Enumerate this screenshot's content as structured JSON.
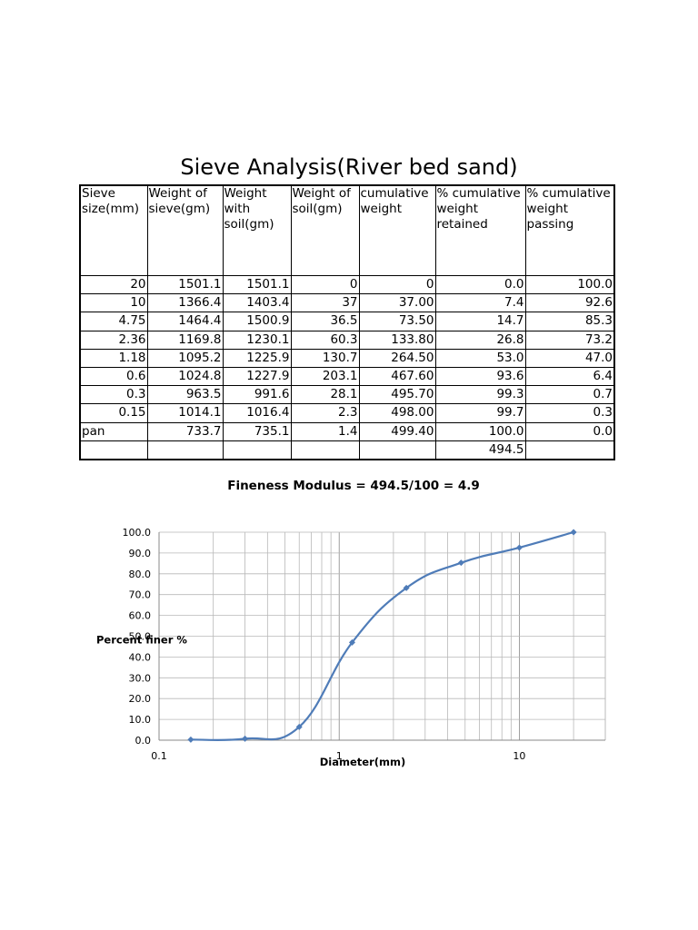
{
  "title": "Sieve Analysis(River bed sand)",
  "table": {
    "headers": [
      "Sieve size(mm)",
      "Weight of sieve(gm)",
      "Weight with soil(gm)",
      "Weight of soil(gm)",
      "cumulative weight",
      "% cumulative weight retained",
      "% cumulative weight passing"
    ],
    "rows": [
      [
        "20",
        "1501.1",
        "1501.1",
        "0",
        "0",
        "0.0",
        "100.0"
      ],
      [
        "10",
        "1366.4",
        "1403.4",
        "37",
        "37.00",
        "7.4",
        "92.6"
      ],
      [
        "4.75",
        "1464.4",
        "1500.9",
        "36.5",
        "73.50",
        "14.7",
        "85.3"
      ],
      [
        "2.36",
        "1169.8",
        "1230.1",
        "60.3",
        "133.80",
        "26.8",
        "73.2"
      ],
      [
        "1.18",
        "1095.2",
        "1225.9",
        "130.7",
        "264.50",
        "53.0",
        "47.0"
      ],
      [
        "0.6",
        "1024.8",
        "1227.9",
        "203.1",
        "467.60",
        "93.6",
        "6.4"
      ],
      [
        "0.3",
        "963.5",
        "991.6",
        "28.1",
        "495.70",
        "99.3",
        "0.7"
      ],
      [
        "0.15",
        "1014.1",
        "1016.4",
        "2.3",
        "498.00",
        "99.7",
        "0.3"
      ],
      [
        "pan",
        "733.7",
        "735.1",
        "1.4",
        "499.40",
        "100.0",
        "0.0"
      ],
      [
        "",
        "",
        "",
        "",
        "",
        "494.5",
        ""
      ]
    ]
  },
  "fineness_modulus": "Fineness Modulus = 494.5/100 = 4.9",
  "chart_data": {
    "type": "line",
    "xlabel": "Diameter(mm)",
    "ylabel": "Percent finer %",
    "xscale": "log",
    "xlim": [
      0.1,
      30
    ],
    "ylim": [
      0,
      100
    ],
    "xticks": [
      "0.1",
      "1",
      "10"
    ],
    "yticks": [
      "0.0",
      "10.0",
      "20.0",
      "30.0",
      "40.0",
      "50.0",
      "60.0",
      "70.0",
      "80.0",
      "90.0",
      "100.0"
    ],
    "grid": true,
    "color": "#4f7cb8",
    "smooth": true,
    "series": [
      {
        "x": [
          20,
          10,
          4.75,
          2.36,
          1.18,
          0.6,
          0.3,
          0.15
        ],
        "y": [
          100.0,
          92.6,
          85.3,
          73.2,
          47.0,
          6.4,
          0.7,
          0.3
        ]
      }
    ]
  }
}
